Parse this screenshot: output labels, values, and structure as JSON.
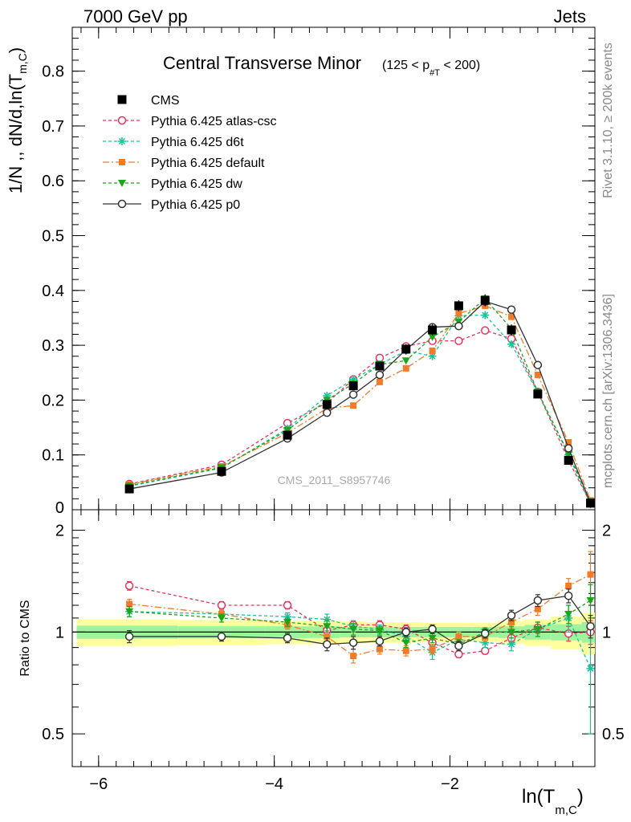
{
  "header": {
    "left": "7000 GeV pp",
    "right": "Jets"
  },
  "side": {
    "events": "Rivet 3.1.10, ≥ 200k events",
    "source": "mcplots.cern.ch [arXiv:1306.3436]"
  },
  "chart_data": {
    "type": "line",
    "title": "Central Transverse Minor",
    "title_cut": "(125 < p",
    "title_cut_sub": "#T",
    "title_cut_end": " < 200)",
    "watermark": "CMS_2011_S8957746",
    "ylabel_main": "1/N ,, dN/d,ln(T",
    "ylabel_main_sub": "m,C",
    "ylabel_main_end": ")",
    "ylabel_ratio": "Ratio to CMS",
    "xlabel": "ln(T",
    "xlabel_sub": "m,C",
    "xlabel_end": ")",
    "xlim": [
      -6.3,
      -0.35
    ],
    "ylim_main": [
      0,
      0.88
    ],
    "ylim_ratio": [
      0.4,
      2.3
    ],
    "x_ticks": [
      -6,
      -4,
      -2
    ],
    "x_tick_labels": [
      "−6",
      "−4",
      "−2"
    ],
    "y_ticks_main": [
      0,
      0.1,
      0.2,
      0.3,
      0.4,
      0.5,
      0.6,
      0.7,
      0.8
    ],
    "y_tick_labels_main": [
      "0",
      "0.1",
      "0.2",
      "0.3",
      "0.4",
      "0.5",
      "0.6",
      "0.7",
      "0.8"
    ],
    "y_ticks_ratio": [
      0.5,
      1,
      2
    ],
    "y_tick_labels_ratio": [
      "0.5",
      "1",
      "2"
    ],
    "legend_position": "top-left",
    "x": [
      -5.65,
      -4.6,
      -3.85,
      -3.4,
      -3.1,
      -2.8,
      -2.5,
      -2.2,
      -1.9,
      -1.6,
      -1.3,
      -1.0,
      -0.65,
      -0.4
    ],
    "ratio_bands": {
      "x_edges": [
        -6.25,
        -5.1,
        -4.1,
        -3.55,
        -3.25,
        -2.95,
        -2.65,
        -2.35,
        -2.05,
        -1.75,
        -1.45,
        -1.15,
        -0.85,
        -0.5,
        -0.35
      ],
      "stat_half": [
        0.045,
        0.04,
        0.04,
        0.04,
        0.035,
        0.035,
        0.035,
        0.035,
        0.035,
        0.035,
        0.04,
        0.05,
        0.055,
        0.07
      ],
      "total_half": [
        0.09,
        0.085,
        0.08,
        0.08,
        0.075,
        0.07,
        0.07,
        0.065,
        0.065,
        0.065,
        0.075,
        0.09,
        0.11,
        0.14
      ]
    },
    "series": [
      {
        "name": "CMS",
        "style": "data",
        "color": "#000000",
        "marker": "square",
        "values": [
          0.038,
          0.07,
          0.136,
          0.192,
          0.226,
          0.262,
          0.293,
          0.328,
          0.372,
          0.382,
          0.328,
          0.211,
          0.09,
          0.012
        ],
        "errors": [
          0.002,
          0.003,
          0.004,
          0.006,
          0.007,
          0.008,
          0.009,
          0.01,
          0.01,
          0.011,
          0.01,
          0.007,
          0.004,
          0.002
        ]
      },
      {
        "name": "Pythia 6.425 atlas-csc",
        "color": "#e8325f",
        "marker": "circle-open",
        "dash": "4,3",
        "values": [
          0.047,
          0.082,
          0.158,
          0.195,
          0.238,
          0.277,
          0.298,
          0.308,
          0.308,
          0.327,
          0.312,
          0.215,
          0.09,
          0.012
        ],
        "ratio": [
          1.37,
          1.2,
          1.2,
          1.01,
          1.05,
          1.05,
          1.02,
          0.93,
          0.86,
          0.88,
          0.96,
          1.03,
          0.99,
          1.0
        ],
        "ratio_err": [
          0.04,
          0.03,
          0.03,
          0.03,
          0.03,
          0.03,
          0.03,
          0.03,
          0.02,
          0.02,
          0.03,
          0.04,
          0.05,
          0.08
        ]
      },
      {
        "name": "Pythia 6.425 d6t",
        "color": "#19c39a",
        "marker": "star",
        "dash": "4,3",
        "values": [
          0.043,
          0.076,
          0.148,
          0.208,
          0.238,
          0.265,
          0.29,
          0.28,
          0.354,
          0.355,
          0.302,
          0.214,
          0.1,
          0.01
        ],
        "ratio": [
          1.15,
          1.13,
          1.11,
          1.09,
          1.04,
          1.02,
          0.97,
          0.87,
          0.95,
          0.93,
          0.92,
          1.02,
          1.1,
          0.78
        ],
        "ratio_err": [
          0.04,
          0.03,
          0.03,
          0.04,
          0.04,
          0.03,
          0.03,
          0.04,
          0.03,
          0.03,
          0.04,
          0.05,
          0.1,
          0.28
        ]
      },
      {
        "name": "Pythia 6.425 default",
        "color": "#f27b28",
        "marker": "square-filled",
        "dash": "8,3,2,3",
        "values": [
          0.046,
          0.079,
          0.14,
          0.185,
          0.19,
          0.233,
          0.258,
          0.29,
          0.358,
          0.372,
          0.352,
          0.246,
          0.123,
          0.017
        ],
        "ratio": [
          1.21,
          1.13,
          1.05,
          0.97,
          0.85,
          0.89,
          0.88,
          0.89,
          0.97,
          0.97,
          1.07,
          1.17,
          1.37,
          1.48
        ],
        "ratio_err": [
          0.04,
          0.03,
          0.03,
          0.04,
          0.04,
          0.03,
          0.03,
          0.03,
          0.03,
          0.03,
          0.04,
          0.05,
          0.07,
          0.25
        ]
      },
      {
        "name": "Pythia 6.425 dw",
        "color": "#1aa51a",
        "marker": "triangle-down",
        "dash": "4,3",
        "values": [
          0.044,
          0.077,
          0.145,
          0.2,
          0.23,
          0.265,
          0.272,
          0.315,
          0.343,
          0.385,
          0.33,
          0.215,
          0.102,
          0.015
        ],
        "ratio": [
          1.15,
          1.1,
          1.07,
          1.04,
          1.02,
          1.01,
          0.93,
          0.96,
          0.92,
          1.0,
          1.0,
          1.02,
          1.13,
          1.24
        ],
        "ratio_err": [
          0.04,
          0.03,
          0.03,
          0.04,
          0.04,
          0.03,
          0.03,
          0.03,
          0.03,
          0.03,
          0.04,
          0.05,
          0.07,
          0.14
        ]
      },
      {
        "name": "Pythia 6.425 p0",
        "color": "#333333",
        "marker": "circle-open",
        "dash": "",
        "values": [
          0.038,
          0.068,
          0.13,
          0.177,
          0.21,
          0.246,
          0.292,
          0.333,
          0.335,
          0.38,
          0.365,
          0.264,
          0.112,
          0.012
        ],
        "ratio": [
          0.97,
          0.97,
          0.96,
          0.92,
          0.93,
          0.94,
          1.0,
          1.02,
          0.91,
          0.99,
          1.12,
          1.24,
          1.28,
          1.04
        ],
        "ratio_err": [
          0.04,
          0.03,
          0.03,
          0.04,
          0.04,
          0.03,
          0.03,
          0.03,
          0.03,
          0.03,
          0.04,
          0.05,
          0.06,
          0.08
        ]
      }
    ]
  }
}
